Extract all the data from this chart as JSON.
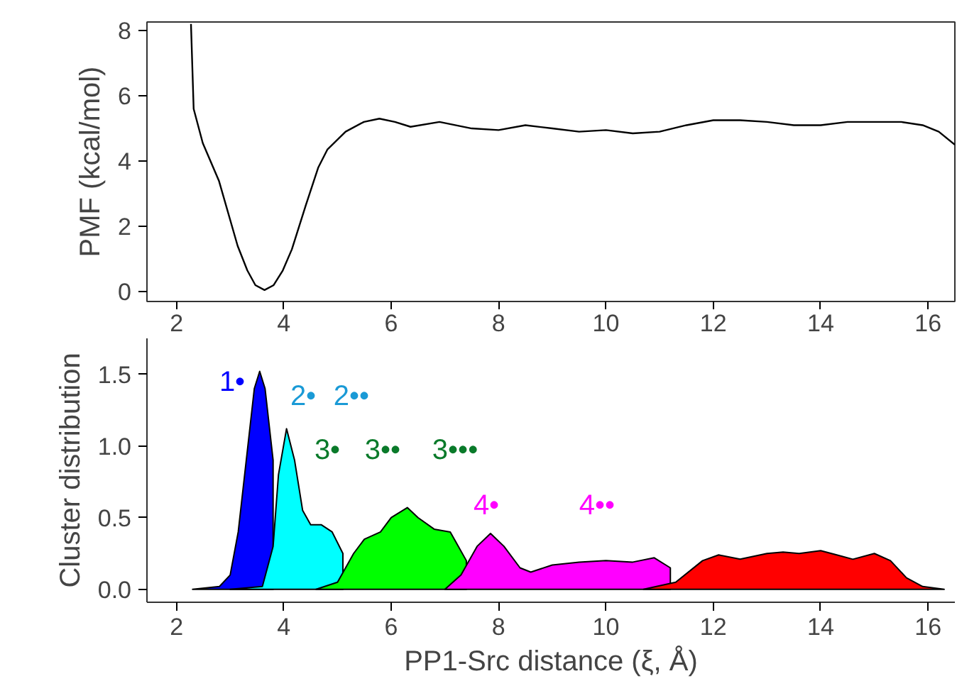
{
  "chart_data": [
    {
      "type": "line",
      "ylabel": "PMF (kcal/mol)",
      "xlim": [
        1.45,
        16.5
      ],
      "xticks": [
        2,
        4,
        6,
        8,
        10,
        12,
        14,
        16
      ],
      "ylim": [
        -0.3,
        8.26
      ],
      "yticks": [
        0,
        2,
        4,
        6,
        8
      ],
      "tick_labels": "y",
      "series": [
        {
          "color": "#000000",
          "x": [
            2.27,
            2.32,
            2.49,
            2.79,
            3.14,
            3.32,
            3.47,
            3.64,
            3.81,
            3.98,
            4.15,
            4.41,
            4.64,
            4.81,
            5.15,
            5.49,
            5.78,
            6.07,
            6.36,
            6.9,
            7.5,
            8.0,
            8.5,
            9.0,
            9.5,
            10.0,
            10.5,
            11.0,
            11.5,
            12.0,
            12.5,
            13.0,
            13.5,
            14.0,
            14.5,
            15.0,
            15.5,
            15.9,
            16.2,
            16.5
          ],
          "values": [
            8.2,
            5.6,
            4.55,
            3.4,
            1.4,
            0.65,
            0.2,
            0.05,
            0.2,
            0.65,
            1.3,
            2.65,
            3.8,
            4.35,
            4.9,
            5.2,
            5.3,
            5.2,
            5.05,
            5.2,
            5.0,
            4.95,
            5.1,
            5.0,
            4.9,
            4.95,
            4.85,
            4.9,
            5.1,
            5.25,
            5.25,
            5.2,
            5.1,
            5.1,
            5.2,
            5.2,
            5.2,
            5.1,
            4.9,
            4.5
          ]
        }
      ]
    },
    {
      "type": "area",
      "xlabel": "PP1-Src distance (ξ, Å)",
      "ylabel": "Cluster distribution",
      "xlim": [
        1.45,
        16.5
      ],
      "xticks": [
        2,
        4,
        6,
        8,
        10,
        12,
        14,
        16
      ],
      "x2lim": [
        1.45,
        16.5
      ],
      "x2ticks": [
        2,
        4,
        6,
        8,
        10,
        12,
        14,
        16
      ],
      "ylim": [
        -0.09,
        1.75
      ],
      "yticks": [
        {
          "value": 0,
          "label": "0.0"
        },
        {
          "value": 0.5,
          "label": "0.5"
        },
        {
          "value": 1,
          "label": "1.0"
        },
        {
          "value": 1.5,
          "label": "1.5"
        }
      ],
      "annotations": [
        "1•",
        "2•",
        "2••",
        "3•",
        "3••",
        "3•••",
        "4•",
        "4••"
      ],
      "series": [
        {
          "color": "#0000ff",
          "x": [
            2.3,
            2.8,
            3.0,
            3.15,
            3.3,
            3.45,
            3.55,
            3.65,
            3.8
          ],
          "values": [
            0,
            0.02,
            0.1,
            0.4,
            0.9,
            1.4,
            1.52,
            1.4,
            0.9
          ]
        },
        {
          "color": "#00ffff",
          "x": [
            3.0,
            3.6,
            3.8,
            3.9,
            4.05,
            4.2,
            4.35,
            4.5,
            4.7,
            4.9,
            5.1
          ],
          "values": [
            0,
            0.02,
            0.3,
            0.8,
            1.12,
            0.9,
            0.55,
            0.45,
            0.45,
            0.4,
            0.25
          ]
        },
        {
          "color": "#00ff00",
          "x": [
            4.6,
            5.0,
            5.3,
            5.5,
            5.8,
            6.0,
            6.3,
            6.5,
            6.8,
            7.1,
            7.4
          ],
          "values": [
            0,
            0.05,
            0.25,
            0.35,
            0.4,
            0.5,
            0.57,
            0.5,
            0.42,
            0.4,
            0.2
          ]
        },
        {
          "color": "#ff00ff",
          "x": [
            7.0,
            7.3,
            7.6,
            7.85,
            8.1,
            8.4,
            8.6,
            9.0,
            9.5,
            10.0,
            10.5,
            10.9,
            11.2
          ],
          "values": [
            0,
            0.1,
            0.3,
            0.39,
            0.3,
            0.15,
            0.12,
            0.17,
            0.19,
            0.2,
            0.19,
            0.22,
            0.15
          ]
        },
        {
          "color": "#ff0000",
          "x": [
            10.7,
            11.3,
            11.8,
            12.1,
            12.5,
            13.0,
            13.3,
            13.6,
            14.0,
            14.3,
            14.6,
            15.0,
            15.3,
            15.6,
            15.9,
            16.3
          ],
          "values": [
            0,
            0.05,
            0.2,
            0.24,
            0.21,
            0.25,
            0.26,
            0.25,
            0.27,
            0.24,
            0.21,
            0.25,
            0.2,
            0.08,
            0.02,
            0
          ]
        }
      ]
    }
  ]
}
